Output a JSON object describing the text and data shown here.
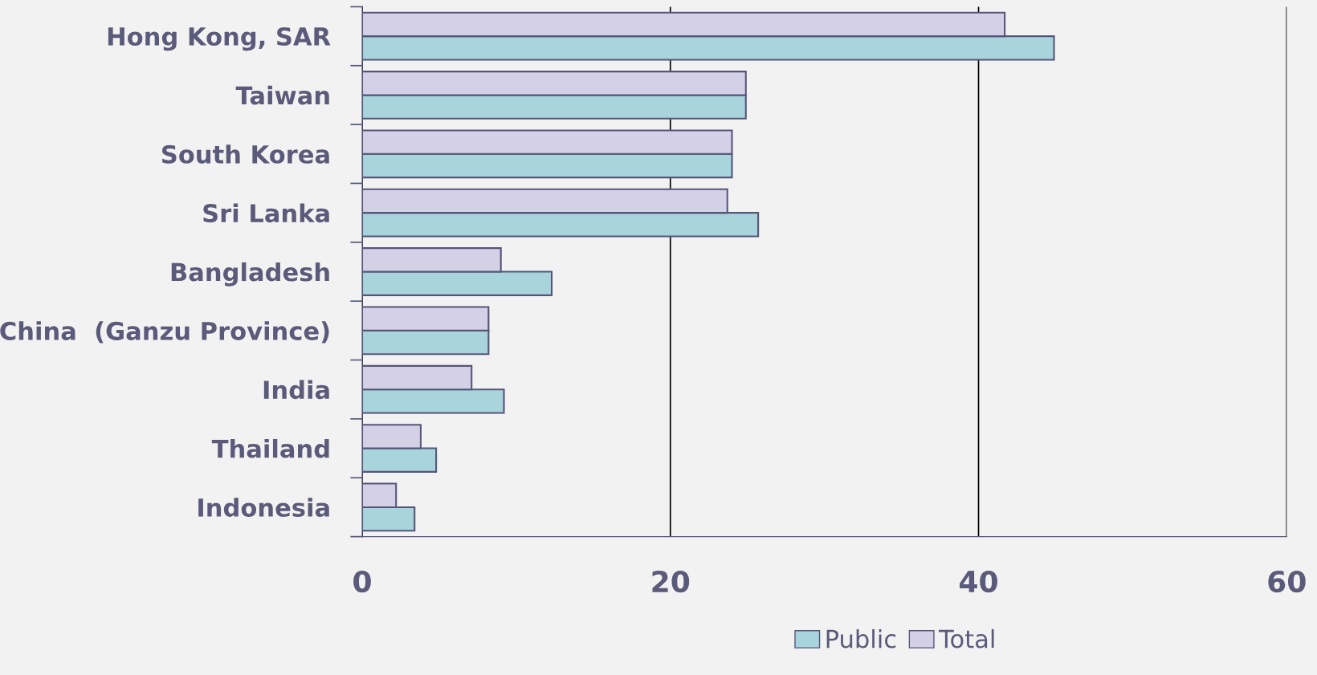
{
  "chart_data": {
    "type": "bar",
    "orientation": "horizontal",
    "categories": [
      "Hong Kong, SAR",
      "Taiwan",
      "South Korea",
      "Sri Lanka",
      "Bangladesh",
      "China  (Ganzu Province)",
      "India",
      "Thailand",
      "Indonesia"
    ],
    "series": [
      {
        "name": "Public",
        "color": "#a8d4dc",
        "values": [
          44.9,
          24.9,
          24.0,
          25.7,
          12.3,
          8.2,
          9.2,
          4.8,
          3.4
        ]
      },
      {
        "name": "Total",
        "color": "#d4d0e6",
        "values": [
          41.7,
          24.9,
          24.0,
          23.7,
          9.0,
          8.2,
          7.1,
          3.8,
          2.2
        ]
      }
    ],
    "xlim": [
      0,
      60
    ],
    "xticks": [
      0,
      20,
      40,
      60
    ],
    "grid": "x",
    "legend": "bottom"
  }
}
